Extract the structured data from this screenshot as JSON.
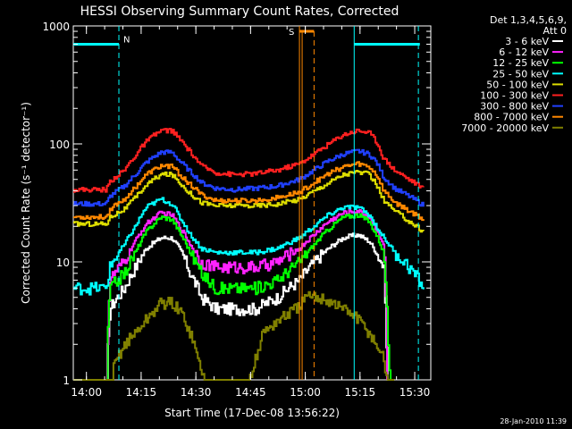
{
  "chart_data": {
    "type": "line",
    "title": "HESSI Observing Summary Count Rates, Corrected",
    "xlabel": "Start Time (17-Dec-08 13:56:22)",
    "ylabel": "Corrected Count Rate (s⁻¹ detector⁻¹)",
    "y_scale": "log",
    "ylim": [
      1,
      1000
    ],
    "x_unit": "minutes after 13:56:22",
    "xlim": [
      0,
      98
    ],
    "x_ticks": [
      {
        "label": "14:00",
        "value": 3.6
      },
      {
        "label": "14:15",
        "value": 18.6
      },
      {
        "label": "14:30",
        "value": 33.6
      },
      {
        "label": "14:45",
        "value": 48.6
      },
      {
        "label": "15:00",
        "value": 63.6
      },
      {
        "label": "15:15",
        "value": 78.6
      },
      {
        "label": "15:30",
        "value": 93.6
      }
    ],
    "y_ticks": [
      {
        "label": "1",
        "value": 1
      },
      {
        "label": "10",
        "value": 10
      },
      {
        "label": "100",
        "value": 100
      },
      {
        "label": "1000",
        "value": 1000
      }
    ],
    "legend_title": [
      "Det 1,3,4,5,6,9,",
      "Att 0"
    ],
    "legend_position": "right",
    "timestamp": "28-Jan-2010 11:39",
    "series": [
      {
        "name": "3 - 6 keV",
        "color": "#ffffff",
        "x": [
          0,
          9,
          10,
          14,
          17,
          20,
          24,
          27,
          29,
          32,
          35,
          39,
          44,
          50,
          56,
          62,
          66,
          70,
          74,
          78,
          81,
          83,
          85,
          86,
          88
        ],
        "y": [
          0,
          0,
          4,
          6,
          9,
          13,
          16,
          16,
          13,
          8,
          5,
          4,
          4,
          4,
          5,
          7,
          10,
          13,
          16,
          17,
          15,
          12,
          9,
          0,
          0
        ]
      },
      {
        "name": "6 - 12 keV",
        "color": "#ff22ff",
        "x": [
          0,
          9,
          10,
          14,
          17,
          20,
          24,
          27,
          29,
          32,
          35,
          39,
          44,
          50,
          56,
          62,
          66,
          70,
          74,
          78,
          81,
          83,
          85,
          86
        ],
        "y": [
          0,
          0,
          7,
          10,
          15,
          21,
          26,
          25,
          20,
          14,
          10,
          9,
          9,
          9,
          10,
          13,
          17,
          22,
          26,
          27,
          24,
          19,
          14,
          0
        ]
      },
      {
        "name": "12 - 25 keV",
        "color": "#00ff00",
        "x": [
          0,
          9,
          10,
          14,
          17,
          20,
          24,
          27,
          29,
          32,
          35,
          39,
          44,
          50,
          56,
          62,
          66,
          70,
          74,
          78,
          81,
          83,
          85,
          86,
          87
        ],
        "y": [
          0,
          0,
          6,
          8,
          12,
          18,
          24,
          23,
          18,
          12,
          8,
          6,
          6,
          6,
          7,
          10,
          14,
          19,
          24,
          25,
          22,
          17,
          12,
          3,
          0
        ]
      },
      {
        "name": "25 - 50 keV",
        "color": "#00ffff",
        "x": [
          0,
          9,
          10,
          14,
          17,
          20,
          24,
          27,
          29,
          32,
          35,
          39,
          44,
          50,
          56,
          62,
          66,
          70,
          74,
          78,
          81,
          83,
          85,
          88,
          92,
          96
        ],
        "y": [
          6,
          6,
          9,
          14,
          20,
          29,
          34,
          31,
          24,
          17,
          13,
          12,
          12,
          12,
          13,
          16,
          20,
          25,
          29,
          29,
          25,
          20,
          16,
          12,
          9,
          6
        ]
      },
      {
        "name": "50 - 100 keV",
        "color": "#dddd00",
        "x": [
          0,
          9,
          10,
          14,
          17,
          20,
          24,
          27,
          29,
          32,
          35,
          39,
          44,
          50,
          56,
          62,
          66,
          70,
          74,
          78,
          81,
          83,
          85,
          88,
          92,
          96
        ],
        "y": [
          21,
          21,
          24,
          28,
          35,
          45,
          55,
          55,
          47,
          38,
          32,
          30,
          30,
          30,
          31,
          34,
          40,
          47,
          55,
          58,
          55,
          45,
          33,
          27,
          22,
          18
        ]
      },
      {
        "name": "100 - 300 keV",
        "color": "#ff2020",
        "x": [
          0,
          9,
          10,
          14,
          17,
          20,
          24,
          27,
          29,
          32,
          35,
          39,
          44,
          50,
          56,
          62,
          66,
          70,
          74,
          78,
          81,
          83,
          85,
          88,
          92,
          96
        ],
        "y": [
          41,
          41,
          48,
          60,
          80,
          105,
          130,
          130,
          110,
          85,
          65,
          57,
          55,
          56,
          60,
          68,
          82,
          100,
          120,
          130,
          125,
          105,
          75,
          60,
          50,
          42
        ]
      },
      {
        "name": "300 - 800 keV",
        "color": "#2040ff",
        "x": [
          0,
          9,
          10,
          14,
          17,
          20,
          24,
          27,
          29,
          32,
          35,
          39,
          44,
          50,
          56,
          62,
          66,
          70,
          74,
          78,
          81,
          83,
          85,
          88,
          92,
          96
        ],
        "y": [
          31,
          31,
          36,
          44,
          55,
          70,
          85,
          85,
          72,
          58,
          47,
          42,
          41,
          42,
          44,
          50,
          60,
          72,
          82,
          87,
          82,
          70,
          52,
          42,
          36,
          30
        ]
      },
      {
        "name": "800 - 7000 keV",
        "color": "#ff8800",
        "x": [
          0,
          9,
          10,
          14,
          17,
          20,
          24,
          27,
          29,
          32,
          35,
          39,
          44,
          50,
          56,
          62,
          66,
          70,
          74,
          78,
          81,
          83,
          85,
          88,
          92,
          96
        ],
        "y": [
          24,
          24,
          28,
          34,
          43,
          55,
          65,
          65,
          55,
          45,
          37,
          33,
          33,
          33,
          35,
          39,
          47,
          56,
          64,
          68,
          64,
          55,
          40,
          32,
          27,
          23
        ]
      },
      {
        "name": "7000 - 20000 keV",
        "color": "#808000",
        "x": [
          0,
          10,
          11,
          14,
          17,
          21,
          24,
          27,
          30,
          32,
          34,
          36,
          37,
          46,
          48,
          50,
          52,
          55,
          58,
          61,
          64,
          66,
          68,
          71,
          74,
          77,
          81,
          85,
          86,
          88
        ],
        "y": [
          0,
          0,
          1.3,
          2,
          2.5,
          3.5,
          4.5,
          4.5,
          3.5,
          2.5,
          1.5,
          1,
          0,
          0,
          1,
          1.5,
          2.5,
          3,
          3.5,
          4,
          5,
          5,
          5,
          4.5,
          4,
          3.5,
          2.5,
          1.5,
          1,
          0
        ]
      }
    ],
    "annotations": {
      "night_left": {
        "label": "N",
        "start": 0,
        "end": 12.5,
        "level": 700
      },
      "night_right": {
        "label": "",
        "start": 77,
        "end": 98,
        "level": 700
      },
      "saa": {
        "label": "S",
        "start": 62,
        "end": 66,
        "level": 900,
        "end_dashed": 66
      }
    }
  }
}
